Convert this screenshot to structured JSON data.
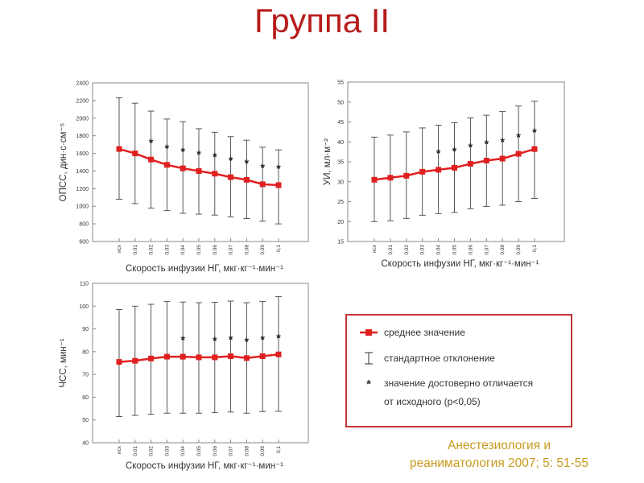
{
  "slide": {
    "title": "Группа II",
    "citation_line1": "Анестезиология и",
    "citation_line2": "реаниматология 2007; 5: 51-55"
  },
  "legend": {
    "mean": "среднее значение",
    "sd": "стандартное отклонение",
    "sig_line1": "значение достоверно отличается",
    "sig_line2": "от исходного (p<0,05)",
    "star": "*"
  },
  "colors": {
    "series": "#e02020",
    "accent": "#b81c1c",
    "citation": "#c89a1e",
    "legend_border": "#c43535"
  },
  "chart_data": [
    {
      "type": "line",
      "id": "opss",
      "ylabel": "ОПСС, дин·с·см⁻⁵",
      "xlabel": "Скорость инфузии НГ, мкг·кг⁻¹·мин⁻¹",
      "ylim": [
        600,
        2400
      ],
      "yticks": [
        600,
        800,
        1000,
        1200,
        1400,
        1600,
        1800,
        2000,
        2200,
        2400
      ],
      "categories": [
        "исх",
        "0,01",
        "0,02",
        "0,03",
        "0,04",
        "0,05",
        "0,06",
        "0,07",
        "0,08",
        "0,09",
        "0,1"
      ],
      "values": [
        1650,
        1600,
        1530,
        1470,
        1430,
        1400,
        1370,
        1330,
        1300,
        1250,
        1240
      ],
      "upper": [
        2230,
        2170,
        2080,
        1990,
        1960,
        1880,
        1840,
        1790,
        1750,
        1670,
        1640
      ],
      "lower": [
        1080,
        1030,
        980,
        950,
        920,
        910,
        900,
        880,
        860,
        830,
        800
      ],
      "significant": [
        false,
        false,
        true,
        true,
        true,
        true,
        true,
        true,
        true,
        true,
        true
      ]
    },
    {
      "type": "line",
      "id": "ui",
      "ylabel": "УИ, мл·м⁻²",
      "xlabel": "Скорость инфузии НГ, мкг·кг⁻¹·мин⁻¹",
      "ylim": [
        15,
        55
      ],
      "yticks": [
        15,
        20,
        25,
        30,
        35,
        40,
        45,
        50,
        55
      ],
      "categories": [
        "исх",
        "0,01",
        "0,02",
        "0,03",
        "0,04",
        "0,05",
        "0,06",
        "0,07",
        "0,08",
        "0,09",
        "0,1"
      ],
      "values": [
        30.5,
        31,
        31.5,
        32.5,
        33,
        33.5,
        34.5,
        35.3,
        35.8,
        37,
        38.2
      ],
      "upper": [
        41.2,
        41.7,
        42.5,
        43.5,
        44.2,
        44.8,
        46,
        46.7,
        47.6,
        49,
        50.2
      ],
      "lower": [
        20,
        20.2,
        20.8,
        21.6,
        22,
        22.3,
        23.2,
        23.8,
        24.1,
        25,
        25.8
      ],
      "significant": [
        false,
        false,
        false,
        false,
        true,
        true,
        true,
        true,
        true,
        true,
        true
      ]
    },
    {
      "type": "line",
      "id": "chss",
      "ylabel": "ЧСС, мин⁻¹",
      "xlabel": "Скорость инфузии НГ, мкг·кг⁻¹·мин⁻¹",
      "ylim": [
        40,
        110
      ],
      "yticks": [
        40,
        50,
        60,
        70,
        80,
        90,
        100,
        110
      ],
      "categories": [
        "исх",
        "0,01",
        "0,02",
        "0,03",
        "0,04",
        "0,05",
        "0,06",
        "0,07",
        "0,08",
        "0,09",
        "0,1"
      ],
      "values": [
        75.5,
        76,
        77,
        77.8,
        77.8,
        77.5,
        77.5,
        78,
        77.2,
        78,
        78.8
      ],
      "upper": [
        98.5,
        100,
        100.8,
        102,
        101.8,
        101.5,
        101.7,
        102.2,
        101.5,
        102,
        104.2
      ],
      "lower": [
        51.5,
        52,
        52.5,
        53,
        53,
        53,
        53.2,
        53.5,
        53,
        53.7,
        53.8
      ],
      "significant": [
        false,
        false,
        false,
        false,
        true,
        false,
        true,
        true,
        true,
        true,
        true
      ]
    }
  ]
}
